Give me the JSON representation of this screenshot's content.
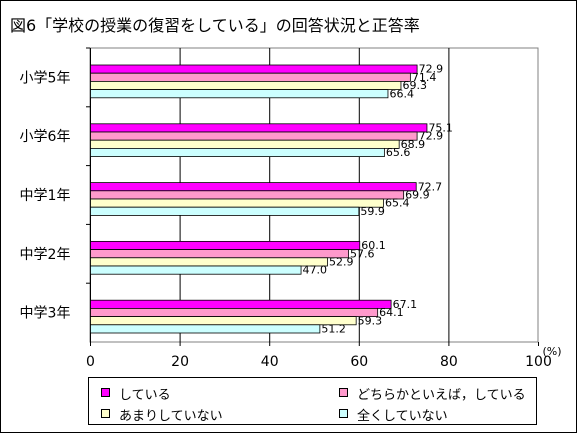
{
  "chart_data": {
    "type": "bar",
    "orientation": "horizontal",
    "title": "図6「学校の授業の復習をしている」の回答状況と正答率",
    "categories": [
      "小学5年",
      "小学6年",
      "中学1年",
      "中学2年",
      "中学3年"
    ],
    "series": [
      {
        "name": "している",
        "color": "#FF00FF",
        "values": [
          72.9,
          75.1,
          72.7,
          60.1,
          67.1
        ]
      },
      {
        "name": "どちらかといえば，している",
        "color": "#FF99CC",
        "values": [
          71.4,
          72.9,
          69.9,
          57.6,
          64.1
        ]
      },
      {
        "name": "あまりしていない",
        "color": "#FFFFCC",
        "values": [
          69.3,
          68.9,
          65.4,
          52.9,
          59.3
        ]
      },
      {
        "name": "全くしていない",
        "color": "#CCFFFF",
        "values": [
          66.4,
          65.6,
          59.9,
          47.0,
          51.2
        ]
      }
    ],
    "xlim": [
      0,
      100
    ],
    "xticks": [
      "0",
      "20",
      "40",
      "60",
      "80",
      "100"
    ],
    "xunit": "(%)",
    "grid": "vertical",
    "legend_position": "bottom"
  }
}
